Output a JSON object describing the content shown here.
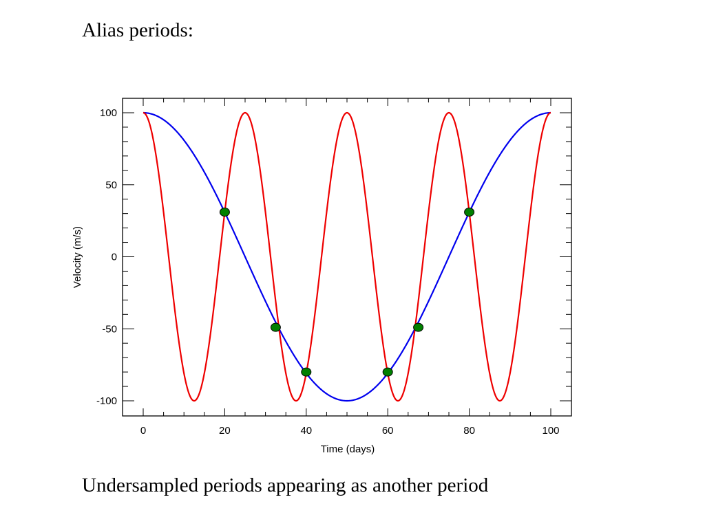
{
  "slide": {
    "title": "Alias periods:",
    "caption": "Undersampled periods appearing as another period"
  },
  "chart_data": {
    "type": "line",
    "title": "",
    "xlabel": "Time (days)",
    "ylabel": "Velocity (m/s)",
    "xlim": [
      0,
      100
    ],
    "ylim": [
      -100,
      100
    ],
    "x_ticks": [
      0,
      20,
      40,
      60,
      80,
      100
    ],
    "y_ticks": [
      -100,
      -50,
      0,
      50,
      100
    ],
    "grid": false,
    "legend": "none",
    "series": [
      {
        "color": "#0000ee",
        "amplitude": 100,
        "period_days": 100,
        "x": [
          0,
          10,
          20,
          30,
          40,
          50,
          60,
          70,
          80,
          90,
          100
        ],
        "values": [
          100,
          80.9,
          30.9,
          -30.9,
          -80.9,
          -100,
          -80.9,
          -30.9,
          30.9,
          80.9,
          100
        ]
      },
      {
        "color": "#ee0000",
        "amplitude": 100,
        "period_days": 25,
        "x": [
          0,
          12.5,
          25,
          37.5,
          50,
          62.5,
          75,
          87.5,
          100
        ],
        "values": [
          100,
          -100,
          100,
          -100,
          100,
          -100,
          100,
          -100,
          100
        ]
      }
    ],
    "points": {
      "color": "#008000",
      "x": [
        20,
        32.5,
        40,
        60,
        67.5,
        80
      ],
      "values": [
        31,
        -49,
        -80,
        -80,
        -49,
        31
      ]
    }
  }
}
